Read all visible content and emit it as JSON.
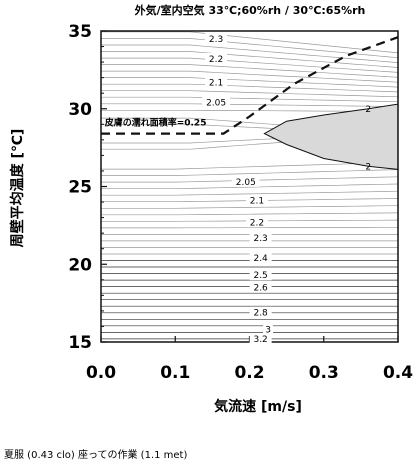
{
  "chart_data": {
    "type": "contour",
    "title": "外気/室内空気 33℃;60%rh / 30℃:65%rh",
    "xlabel": "気流速 [m/s]",
    "ylabel": "周壁平均温度 [℃]",
    "xlim": [
      0.0,
      0.4
    ],
    "ylim": [
      15,
      35
    ],
    "xticks": [
      "0.0",
      "0.1",
      "0.2",
      "0.3",
      "0.4"
    ],
    "yticks": [
      "15",
      "20",
      "25",
      "30",
      "35"
    ],
    "contour_labels": [
      {
        "text": "2.3",
        "x": 0.155,
        "y": 34.5
      },
      {
        "text": "2.2",
        "x": 0.155,
        "y": 33.2
      },
      {
        "text": "2.1",
        "x": 0.155,
        "y": 31.7
      },
      {
        "text": "2.05",
        "x": 0.155,
        "y": 30.4
      },
      {
        "text": "2",
        "x": 0.36,
        "y": 30.0
      },
      {
        "text": "2",
        "x": 0.36,
        "y": 26.3
      },
      {
        "text": "2.05",
        "x": 0.195,
        "y": 25.3
      },
      {
        "text": "2.1",
        "x": 0.21,
        "y": 24.1
      },
      {
        "text": "2.2",
        "x": 0.21,
        "y": 22.7
      },
      {
        "text": "2.3",
        "x": 0.215,
        "y": 21.7
      },
      {
        "text": "2.4",
        "x": 0.215,
        "y": 20.4
      },
      {
        "text": "2.5",
        "x": 0.215,
        "y": 19.3
      },
      {
        "text": "2.6",
        "x": 0.215,
        "y": 18.5
      },
      {
        "text": "2.8",
        "x": 0.215,
        "y": 16.9
      },
      {
        "text": "3",
        "x": 0.225,
        "y": 15.8
      },
      {
        "text": "3.2",
        "x": 0.215,
        "y": 15.2
      }
    ],
    "wetted_area_boundary": {
      "label": "皮膚の濡れ面積率=0.25",
      "points": [
        [
          0.0,
          28.4
        ],
        [
          0.165,
          28.4
        ],
        [
          0.2,
          29.5
        ],
        [
          0.26,
          31.6
        ],
        [
          0.33,
          33.4
        ],
        [
          0.4,
          34.6
        ]
      ]
    },
    "shaded_region": {
      "description": "",
      "points": [
        [
          0.4,
          30.3
        ],
        [
          0.36,
          30.0
        ],
        [
          0.3,
          29.6
        ],
        [
          0.25,
          29.2
        ],
        [
          0.22,
          28.4
        ],
        [
          0.25,
          27.7
        ],
        [
          0.3,
          26.8
        ],
        [
          0.36,
          26.3
        ],
        [
          0.4,
          26.1
        ]
      ]
    }
  },
  "caption": "夏服 (0.43 clo) 座っての作業 (1.1 met)"
}
